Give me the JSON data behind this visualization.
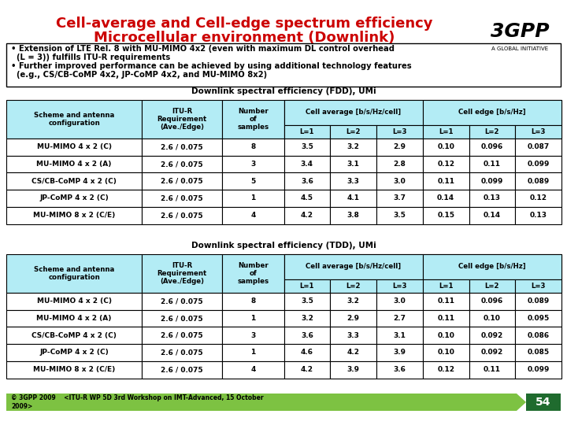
{
  "title_line1": "Cell-average and Cell-edge spectrum efficiency",
  "title_line2": "Microcellular environment (Downlink)",
  "title_color": "#cc0000",
  "bullet_text": "• Extension of LTE Rel. 8 with MU-MIMO 4x2 (even with maximum DL control overhead\n  (L = 3)) fulfills ITU-R requirements\n• Further improved performance can be achieved by using additional technology features\n  (e.g., CS/CB-CoMP 4x2, JP-CoMP 4x2, and MU-MIMO 8x2)",
  "table1_title": "Downlink spectral efficiency (FDD), UMi",
  "table2_title": "Downlink spectral efficiency (TDD), UMi",
  "header_bg": "#b3ecf5",
  "subheader_bg": "#b3ecf5",
  "row_bg": "#ffffff",
  "table_border": "#000000",
  "col_headers": [
    "Scheme and antenna\nconfiguration",
    "ITU-R\nRequirement\n(Ave./Edge)",
    "Number\nof\nsamples",
    "Cell average [b/s/Hz/cell]",
    "",
    "",
    "Cell edge [b/s/Hz]",
    "",
    ""
  ],
  "sub_headers": [
    "",
    "",
    "",
    "L=1",
    "L=2",
    "L=3",
    "L=1",
    "L=2",
    "L=3"
  ],
  "table1_rows": [
    [
      "MU-MIMO 4 x 2 (C)",
      "2.6 / 0.075",
      "8",
      "3.5",
      "3.2",
      "2.9",
      "0.10",
      "0.096",
      "0.087"
    ],
    [
      "MU-MIMO 4 x 2 (A)",
      "2.6 / 0.075",
      "3",
      "3.4",
      "3.1",
      "2.8",
      "0.12",
      "0.11",
      "0.099"
    ],
    [
      "CS/CB-CoMP 4 x 2 (C)",
      "2.6 / 0.075",
      "5",
      "3.6",
      "3.3",
      "3.0",
      "0.11",
      "0.099",
      "0.089"
    ],
    [
      "JP-CoMP 4 x 2 (C)",
      "2.6 / 0.075",
      "1",
      "4.5",
      "4.1",
      "3.7",
      "0.14",
      "0.13",
      "0.12"
    ],
    [
      "MU-MIMO 8 x 2 (C/E)",
      "2.6 / 0.075",
      "4",
      "4.2",
      "3.8",
      "3.5",
      "0.15",
      "0.14",
      "0.13"
    ]
  ],
  "table2_rows": [
    [
      "MU-MIMO 4 x 2 (C)",
      "2.6 / 0.075",
      "8",
      "3.5",
      "3.2",
      "3.0",
      "0.11",
      "0.096",
      "0.089"
    ],
    [
      "MU-MIMO 4 x 2 (A)",
      "2.6 / 0.075",
      "1",
      "3.2",
      "2.9",
      "2.7",
      "0.11",
      "0.10",
      "0.095"
    ],
    [
      "CS/CB-CoMP 4 x 2 (C)",
      "2.6 / 0.075",
      "3",
      "3.6",
      "3.3",
      "3.1",
      "0.10",
      "0.092",
      "0.086"
    ],
    [
      "JP-CoMP 4 x 2 (C)",
      "2.6 / 0.075",
      "1",
      "4.6",
      "4.2",
      "3.9",
      "0.10",
      "0.092",
      "0.085"
    ],
    [
      "MU-MIMO 8 x 2 (C/E)",
      "2.6 / 0.075",
      "4",
      "4.2",
      "3.9",
      "3.6",
      "0.12",
      "0.11",
      "0.099"
    ]
  ],
  "footer_text": "© 3GPP 2009    <ITU-R WP 5D 3rd Workshop on IMT-Advanced, 15 October\n2009>",
  "footer_bg": "#7dc242",
  "page_num": "54",
  "page_num_bg": "#1f6b2e"
}
